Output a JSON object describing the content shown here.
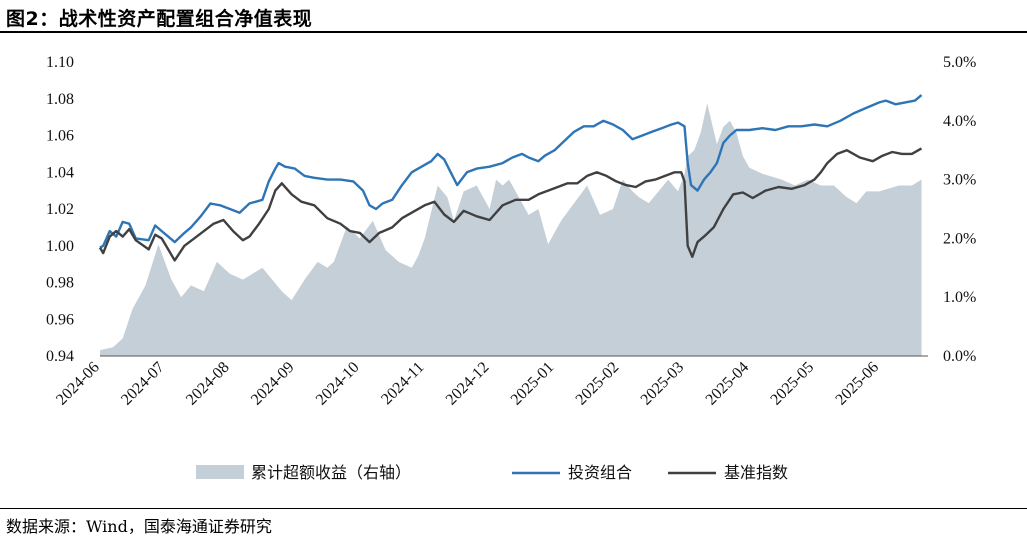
{
  "figure": {
    "title": "图2：战术性资产配置组合净值表现",
    "source": "数据来源：Wind，国泰海通证券研究"
  },
  "colors": {
    "portfolio": "#2e75b6",
    "benchmark": "#404040",
    "excess": "#c5cfd8"
  },
  "chart_data": {
    "type": "line",
    "x_categories": [
      "2024-06",
      "2024-07",
      "2024-08",
      "2024-09",
      "2024-10",
      "2024-11",
      "2024-12",
      "2025-01",
      "2025-02",
      "2025-03",
      "2025-04",
      "2025-05",
      "2025-06"
    ],
    "x_range": [
      "2024-06",
      "2025-06 (end of month)"
    ],
    "y_left": {
      "min": 0.94,
      "max": 1.1,
      "ticks": [
        "0.94",
        "0.96",
        "0.98",
        "1.00",
        "1.02",
        "1.04",
        "1.06",
        "1.08",
        "1.10"
      ]
    },
    "y_right": {
      "min": 0.0,
      "max": 5.0,
      "unit": "%",
      "ticks": [
        "0.0%",
        "1.0%",
        "2.0%",
        "3.0%",
        "4.0%",
        "5.0%"
      ]
    },
    "grid": false,
    "legend_position": "bottom",
    "series": [
      {
        "name": "累计超额收益（右轴）",
        "type": "area",
        "axis": "right",
        "points": [
          [
            0.0,
            0.1
          ],
          [
            0.2,
            0.15
          ],
          [
            0.35,
            0.3
          ],
          [
            0.5,
            0.8
          ],
          [
            0.7,
            1.2
          ],
          [
            0.9,
            1.9
          ],
          [
            1.0,
            1.6
          ],
          [
            1.1,
            1.3
          ],
          [
            1.25,
            1.0
          ],
          [
            1.4,
            1.2
          ],
          [
            1.6,
            1.1
          ],
          [
            1.8,
            1.6
          ],
          [
            2.0,
            1.4
          ],
          [
            2.2,
            1.3
          ],
          [
            2.5,
            1.5
          ],
          [
            2.8,
            1.1
          ],
          [
            2.95,
            0.95
          ],
          [
            3.15,
            1.3
          ],
          [
            3.35,
            1.6
          ],
          [
            3.5,
            1.5
          ],
          [
            3.6,
            1.6
          ],
          [
            3.8,
            2.2
          ],
          [
            4.0,
            2.0
          ],
          [
            4.2,
            2.3
          ],
          [
            4.4,
            1.8
          ],
          [
            4.6,
            1.6
          ],
          [
            4.8,
            1.5
          ],
          [
            4.9,
            1.7
          ],
          [
            5.0,
            2.0
          ],
          [
            5.2,
            2.9
          ],
          [
            5.35,
            2.7
          ],
          [
            5.45,
            2.3
          ],
          [
            5.6,
            2.8
          ],
          [
            5.8,
            2.9
          ],
          [
            6.0,
            2.5
          ],
          [
            6.1,
            3.0
          ],
          [
            6.2,
            2.9
          ],
          [
            6.3,
            3.0
          ],
          [
            6.4,
            2.8
          ],
          [
            6.5,
            2.6
          ],
          [
            6.6,
            2.4
          ],
          [
            6.75,
            2.5
          ],
          [
            6.9,
            1.9
          ],
          [
            7.1,
            2.3
          ],
          [
            7.3,
            2.6
          ],
          [
            7.5,
            2.9
          ],
          [
            7.7,
            2.4
          ],
          [
            7.9,
            2.5
          ],
          [
            8.05,
            3.0
          ],
          [
            8.2,
            2.8
          ],
          [
            8.3,
            2.7
          ],
          [
            8.45,
            2.6
          ],
          [
            8.6,
            2.8
          ],
          [
            8.75,
            3.0
          ],
          [
            8.9,
            2.8
          ],
          [
            9.0,
            3.1
          ],
          [
            9.05,
            3.4
          ],
          [
            9.15,
            3.5
          ],
          [
            9.25,
            3.8
          ],
          [
            9.35,
            4.3
          ],
          [
            9.5,
            3.6
          ],
          [
            9.6,
            3.9
          ],
          [
            9.7,
            4.0
          ],
          [
            9.8,
            3.8
          ],
          [
            9.9,
            3.4
          ],
          [
            10.0,
            3.2
          ],
          [
            10.2,
            3.1
          ],
          [
            10.5,
            3.0
          ],
          [
            10.7,
            2.9
          ],
          [
            10.9,
            3.0
          ],
          [
            11.1,
            2.9
          ],
          [
            11.3,
            2.9
          ],
          [
            11.5,
            2.7
          ],
          [
            11.65,
            2.6
          ],
          [
            11.8,
            2.8
          ],
          [
            12.0,
            2.8
          ],
          [
            12.3,
            2.9
          ],
          [
            12.5,
            2.9
          ],
          [
            12.65,
            3.0
          ]
        ]
      },
      {
        "name": "投资组合",
        "type": "line",
        "axis": "left",
        "points": [
          [
            0.0,
            0.999
          ],
          [
            0.05,
            1.0
          ],
          [
            0.15,
            1.008
          ],
          [
            0.25,
            1.005
          ],
          [
            0.35,
            1.013
          ],
          [
            0.45,
            1.012
          ],
          [
            0.55,
            1.004
          ],
          [
            0.75,
            1.003
          ],
          [
            0.85,
            1.011
          ],
          [
            0.95,
            1.008
          ],
          [
            1.05,
            1.005
          ],
          [
            1.15,
            1.002
          ],
          [
            1.3,
            1.007
          ],
          [
            1.4,
            1.01
          ],
          [
            1.55,
            1.016
          ],
          [
            1.7,
            1.023
          ],
          [
            1.85,
            1.022
          ],
          [
            2.0,
            1.02
          ],
          [
            2.15,
            1.018
          ],
          [
            2.3,
            1.023
          ],
          [
            2.5,
            1.025
          ],
          [
            2.6,
            1.035
          ],
          [
            2.7,
            1.042
          ],
          [
            2.75,
            1.045
          ],
          [
            2.85,
            1.043
          ],
          [
            3.0,
            1.042
          ],
          [
            3.15,
            1.038
          ],
          [
            3.3,
            1.037
          ],
          [
            3.5,
            1.036
          ],
          [
            3.7,
            1.036
          ],
          [
            3.9,
            1.035
          ],
          [
            4.05,
            1.03
          ],
          [
            4.15,
            1.022
          ],
          [
            4.25,
            1.02
          ],
          [
            4.35,
            1.023
          ],
          [
            4.5,
            1.025
          ],
          [
            4.65,
            1.033
          ],
          [
            4.8,
            1.04
          ],
          [
            4.95,
            1.043
          ],
          [
            5.1,
            1.046
          ],
          [
            5.2,
            1.05
          ],
          [
            5.3,
            1.047
          ],
          [
            5.4,
            1.04
          ],
          [
            5.5,
            1.033
          ],
          [
            5.65,
            1.04
          ],
          [
            5.8,
            1.042
          ],
          [
            6.0,
            1.043
          ],
          [
            6.2,
            1.045
          ],
          [
            6.35,
            1.048
          ],
          [
            6.5,
            1.05
          ],
          [
            6.6,
            1.048
          ],
          [
            6.75,
            1.046
          ],
          [
            6.85,
            1.049
          ],
          [
            7.0,
            1.052
          ],
          [
            7.15,
            1.057
          ],
          [
            7.3,
            1.062
          ],
          [
            7.45,
            1.065
          ],
          [
            7.6,
            1.065
          ],
          [
            7.75,
            1.068
          ],
          [
            7.9,
            1.066
          ],
          [
            8.05,
            1.063
          ],
          [
            8.2,
            1.058
          ],
          [
            8.35,
            1.06
          ],
          [
            8.5,
            1.062
          ],
          [
            8.65,
            1.064
          ],
          [
            8.8,
            1.066
          ],
          [
            8.9,
            1.067
          ],
          [
            9.0,
            1.065
          ],
          [
            9.05,
            1.045
          ],
          [
            9.1,
            1.033
          ],
          [
            9.2,
            1.03
          ],
          [
            9.3,
            1.036
          ],
          [
            9.4,
            1.04
          ],
          [
            9.5,
            1.045
          ],
          [
            9.6,
            1.056
          ],
          [
            9.7,
            1.06
          ],
          [
            9.8,
            1.063
          ],
          [
            10.0,
            1.063
          ],
          [
            10.2,
            1.064
          ],
          [
            10.4,
            1.063
          ],
          [
            10.6,
            1.065
          ],
          [
            10.8,
            1.065
          ],
          [
            11.0,
            1.066
          ],
          [
            11.2,
            1.065
          ],
          [
            11.4,
            1.068
          ],
          [
            11.6,
            1.072
          ],
          [
            11.8,
            1.075
          ],
          [
            12.0,
            1.078
          ],
          [
            12.1,
            1.079
          ],
          [
            12.25,
            1.077
          ],
          [
            12.4,
            1.078
          ],
          [
            12.55,
            1.079
          ],
          [
            12.65,
            1.082
          ]
        ]
      },
      {
        "name": "基准指数",
        "type": "line",
        "axis": "left",
        "points": [
          [
            0.0,
            0.999
          ],
          [
            0.05,
            0.996
          ],
          [
            0.15,
            1.005
          ],
          [
            0.25,
            1.008
          ],
          [
            0.35,
            1.005
          ],
          [
            0.45,
            1.009
          ],
          [
            0.55,
            1.003
          ],
          [
            0.75,
            0.998
          ],
          [
            0.85,
            1.006
          ],
          [
            0.95,
            1.004
          ],
          [
            1.05,
            0.998
          ],
          [
            1.15,
            0.992
          ],
          [
            1.3,
            1.0
          ],
          [
            1.45,
            1.004
          ],
          [
            1.6,
            1.008
          ],
          [
            1.75,
            1.012
          ],
          [
            1.9,
            1.014
          ],
          [
            2.05,
            1.008
          ],
          [
            2.2,
            1.003
          ],
          [
            2.3,
            1.005
          ],
          [
            2.45,
            1.012
          ],
          [
            2.6,
            1.02
          ],
          [
            2.7,
            1.03
          ],
          [
            2.8,
            1.034
          ],
          [
            2.95,
            1.028
          ],
          [
            3.1,
            1.024
          ],
          [
            3.3,
            1.022
          ],
          [
            3.5,
            1.015
          ],
          [
            3.7,
            1.012
          ],
          [
            3.85,
            1.008
          ],
          [
            4.0,
            1.007
          ],
          [
            4.15,
            1.002
          ],
          [
            4.3,
            1.007
          ],
          [
            4.5,
            1.01
          ],
          [
            4.65,
            1.015
          ],
          [
            4.8,
            1.018
          ],
          [
            5.0,
            1.022
          ],
          [
            5.15,
            1.024
          ],
          [
            5.3,
            1.017
          ],
          [
            5.45,
            1.013
          ],
          [
            5.6,
            1.019
          ],
          [
            5.8,
            1.016
          ],
          [
            6.0,
            1.014
          ],
          [
            6.2,
            1.022
          ],
          [
            6.4,
            1.025
          ],
          [
            6.6,
            1.025
          ],
          [
            6.75,
            1.028
          ],
          [
            6.9,
            1.03
          ],
          [
            7.05,
            1.032
          ],
          [
            7.2,
            1.034
          ],
          [
            7.35,
            1.034
          ],
          [
            7.5,
            1.038
          ],
          [
            7.65,
            1.04
          ],
          [
            7.8,
            1.038
          ],
          [
            7.95,
            1.035
          ],
          [
            8.1,
            1.033
          ],
          [
            8.25,
            1.032
          ],
          [
            8.4,
            1.035
          ],
          [
            8.55,
            1.036
          ],
          [
            8.7,
            1.038
          ],
          [
            8.85,
            1.04
          ],
          [
            8.95,
            1.04
          ],
          [
            9.0,
            1.035
          ],
          [
            9.05,
            1.0
          ],
          [
            9.12,
            0.994
          ],
          [
            9.2,
            1.002
          ],
          [
            9.3,
            1.005
          ],
          [
            9.45,
            1.01
          ],
          [
            9.6,
            1.02
          ],
          [
            9.75,
            1.028
          ],
          [
            9.9,
            1.029
          ],
          [
            10.05,
            1.026
          ],
          [
            10.25,
            1.03
          ],
          [
            10.45,
            1.032
          ],
          [
            10.65,
            1.031
          ],
          [
            10.85,
            1.033
          ],
          [
            11.0,
            1.036
          ],
          [
            11.1,
            1.04
          ],
          [
            11.2,
            1.045
          ],
          [
            11.35,
            1.05
          ],
          [
            11.5,
            1.052
          ],
          [
            11.7,
            1.048
          ],
          [
            11.9,
            1.046
          ],
          [
            12.05,
            1.049
          ],
          [
            12.2,
            1.051
          ],
          [
            12.35,
            1.05
          ],
          [
            12.5,
            1.05
          ],
          [
            12.65,
            1.053
          ]
        ]
      }
    ]
  }
}
